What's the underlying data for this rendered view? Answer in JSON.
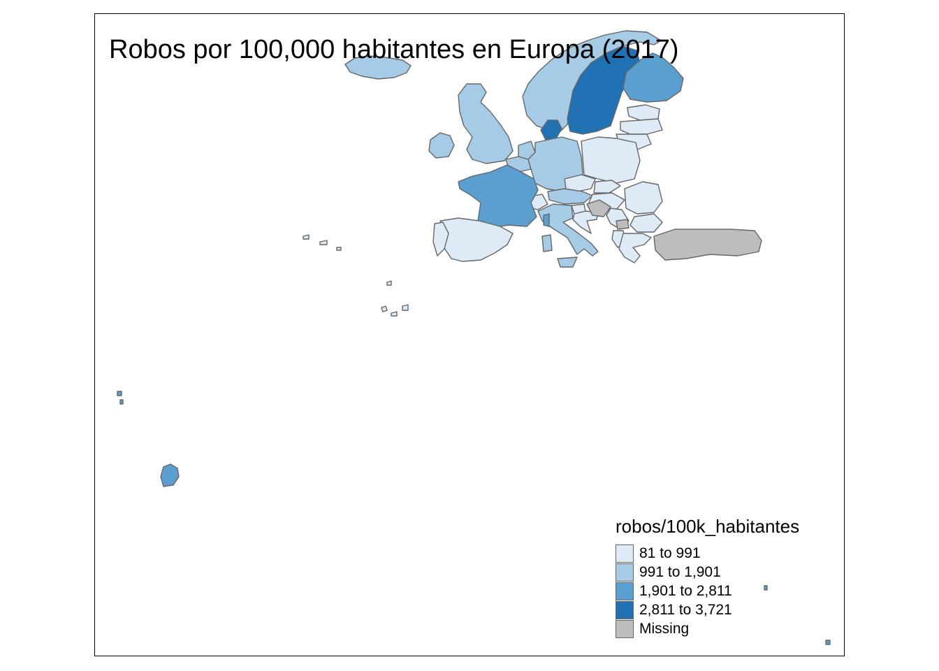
{
  "map": {
    "title": "Robos por 100,000 habitantes en Europa (2017)",
    "legend": {
      "title": "robos/100k_habitantes",
      "classes": [
        {
          "label": "81 to 991",
          "color": "#deebf7"
        },
        {
          "label": "991 to 1,901",
          "color": "#a6cbe6"
        },
        {
          "label": "1,901 to 2,811",
          "color": "#5b9fd0"
        },
        {
          "label": "2,811 to 3,721",
          "color": "#2171b5"
        },
        {
          "label": "Missing",
          "color": "#bdbdbd"
        }
      ]
    },
    "colors": {
      "border": "#666666",
      "c1": "#deebf7",
      "c2": "#a6cbe6",
      "c3": "#5b9fd0",
      "c4": "#2171b5",
      "missing": "#bdbdbd"
    }
  }
}
